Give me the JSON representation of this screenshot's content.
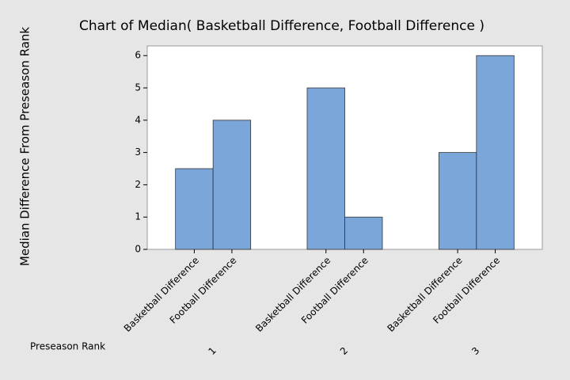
{
  "chart_data": {
    "type": "bar",
    "title": "Chart of Median( Basketball Difference, Football Difference )",
    "y_label": "Median Difference From Preseason Rank",
    "x_label": "Preseason Rank",
    "categories": [
      "1",
      "2",
      "3"
    ],
    "series": [
      {
        "name": "Basketball Difference",
        "color": "#7ba6d9",
        "values": [
          2.5,
          5,
          3
        ]
      },
      {
        "name": "Football Difference",
        "color": "#7ba6d9",
        "values": [
          4,
          1,
          6
        ]
      }
    ],
    "ylim": [
      0,
      6.3
    ],
    "yticks": [
      0,
      1,
      2,
      3,
      4,
      5,
      6
    ],
    "grid": false
  }
}
